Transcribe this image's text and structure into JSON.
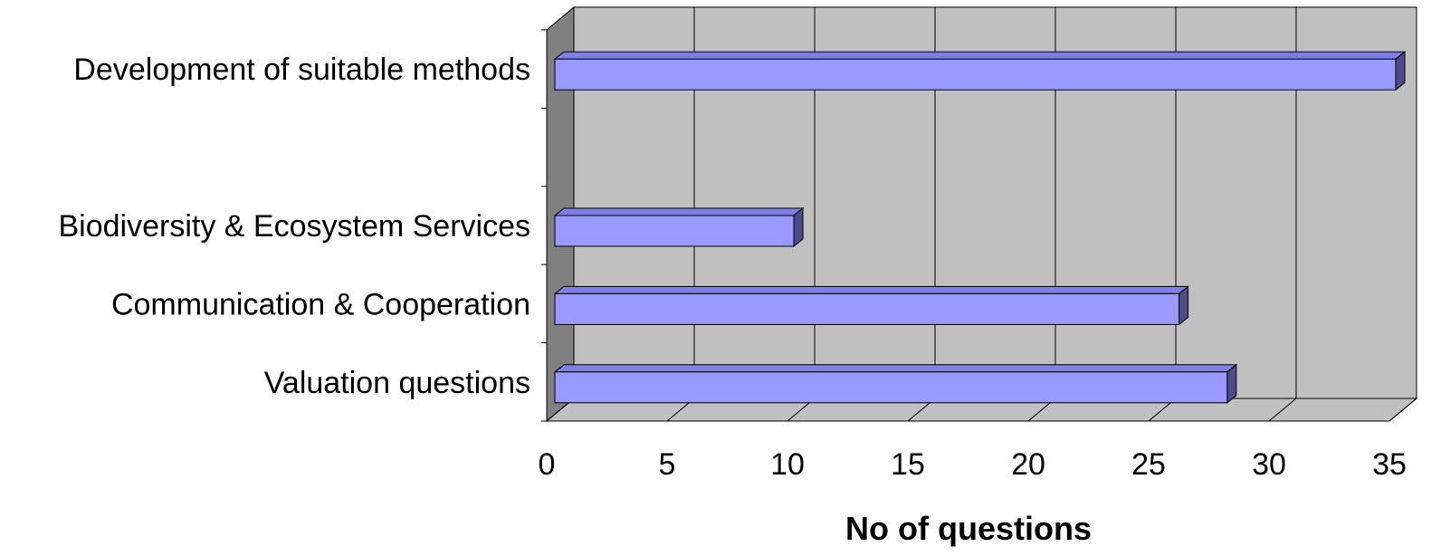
{
  "chart_data": {
    "type": "bar",
    "orientation": "horizontal",
    "style": "3d",
    "categories": [
      "Development of suitable methods",
      "",
      "Biodiversity & Ecosystem Services",
      "Communication & Cooperation",
      "Valuation questions"
    ],
    "values": [
      35,
      null,
      10,
      26,
      28
    ],
    "xlabel": "No of questions",
    "ylabel": "",
    "xlim": [
      0,
      35
    ],
    "xticks": [
      "0",
      "5",
      "10",
      "15",
      "20",
      "25",
      "30",
      "35"
    ],
    "grid": true,
    "legend": false
  },
  "colors": {
    "bar_face": "#9999FF",
    "bar_top": "#7F7FE6",
    "bar_side": "#4C4C8C",
    "plot_wall": "#C0C0C0",
    "side_wall": "#808080",
    "floor": "#C0C0C0"
  }
}
